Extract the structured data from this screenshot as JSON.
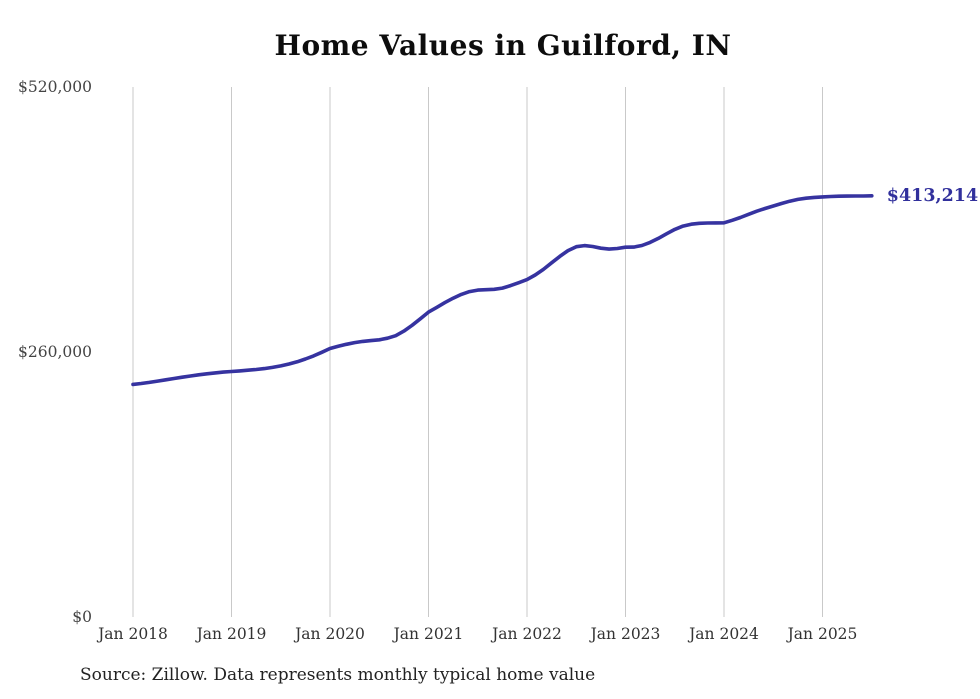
{
  "colors": {
    "line": "#3633a0",
    "annotation": "#31309c",
    "grid": "#c9c9c9",
    "x_tick_text": "#333333",
    "y_tick_text": "#444444",
    "title_text": "#0d0d0d",
    "source_text": "#222222",
    "background": "#ffffff"
  },
  "chart_data": {
    "type": "line",
    "title": "Home Values in Guilford, IN",
    "source_note": "Source: Zillow. Data represents monthly typical home value",
    "xlabel": "",
    "ylabel": "",
    "ylim": [
      0,
      520000
    ],
    "y_ticks": [
      0,
      260000,
      520000
    ],
    "y_tick_labels": [
      "$0",
      "$260,000",
      "$520,000"
    ],
    "x_tick_labels": [
      "Jan 2018",
      "Jan 2019",
      "Jan 2020",
      "Jan 2021",
      "Jan 2022",
      "Jan 2023",
      "Jan 2024",
      "Jan 2025"
    ],
    "grid": "vertical-only",
    "legend": "none",
    "end_value": 413214,
    "end_label": "$413,214",
    "months": [
      "2018-01",
      "2018-02",
      "2018-03",
      "2018-04",
      "2018-05",
      "2018-06",
      "2018-07",
      "2018-08",
      "2018-09",
      "2018-10",
      "2018-11",
      "2018-12",
      "2019-01",
      "2019-02",
      "2019-03",
      "2019-04",
      "2019-05",
      "2019-06",
      "2019-07",
      "2019-08",
      "2019-09",
      "2019-10",
      "2019-11",
      "2019-12",
      "2020-01",
      "2020-02",
      "2020-03",
      "2020-04",
      "2020-05",
      "2020-06",
      "2020-07",
      "2020-08",
      "2020-09",
      "2020-10",
      "2020-11",
      "2020-12",
      "2021-01",
      "2021-02",
      "2021-03",
      "2021-04",
      "2021-05",
      "2021-06",
      "2021-07",
      "2021-08",
      "2021-09",
      "2021-10",
      "2021-11",
      "2021-12",
      "2022-01",
      "2022-02",
      "2022-03",
      "2022-04",
      "2022-05",
      "2022-06",
      "2022-07",
      "2022-08",
      "2022-09",
      "2022-10",
      "2022-11",
      "2022-12",
      "2023-01",
      "2023-02",
      "2023-03",
      "2023-04",
      "2023-05",
      "2023-06",
      "2023-07",
      "2023-08",
      "2023-09",
      "2023-10",
      "2023-11",
      "2023-12",
      "2024-01",
      "2024-02",
      "2024-03",
      "2024-04",
      "2024-05",
      "2024-06",
      "2024-07",
      "2024-08",
      "2024-09",
      "2024-10",
      "2024-11",
      "2024-12",
      "2025-01",
      "2025-02",
      "2025-03",
      "2025-04",
      "2025-05",
      "2025-06",
      "2025-07"
    ],
    "series": [
      {
        "name": "Monthly typical home value",
        "values": [
          228200,
          229100,
          230200,
          231400,
          232700,
          234000,
          235300,
          236500,
          237600,
          238600,
          239500,
          240300,
          240900,
          241500,
          242100,
          242800,
          243700,
          244900,
          246400,
          248200,
          250400,
          253100,
          256200,
          259700,
          263400,
          265600,
          267600,
          269200,
          270400,
          271200,
          272000,
          273500,
          276000,
          280500,
          286200,
          292600,
          299100,
          303800,
          308500,
          312800,
          316500,
          319300,
          320700,
          321100,
          321500,
          322700,
          325100,
          328000,
          331000,
          335500,
          341000,
          347500,
          353800,
          359500,
          363300,
          364400,
          363500,
          361800,
          361000,
          361500,
          362800,
          362900,
          364500,
          367500,
          371500,
          376000,
          380300,
          383500,
          385400,
          386300,
          386600,
          386700,
          386800,
          389200,
          392000,
          395100,
          398100,
          400800,
          403200,
          405700,
          408000,
          409700,
          410900,
          411700,
          412200,
          412600,
          412900,
          413000,
          413100,
          413100,
          413214
        ]
      }
    ]
  }
}
